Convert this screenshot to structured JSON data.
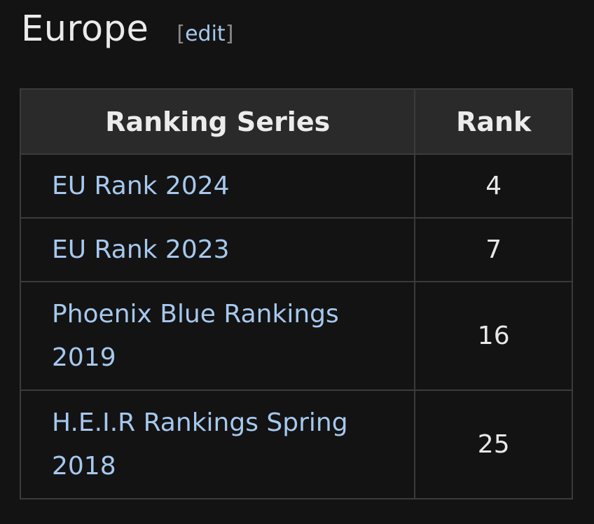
{
  "section": {
    "title": "Europe",
    "edit_open": "[",
    "edit_label": "edit",
    "edit_close": "]"
  },
  "table": {
    "headers": {
      "series": "Ranking Series",
      "rank": "Rank"
    },
    "rows": [
      {
        "series": "EU Rank 2024",
        "rank": "4"
      },
      {
        "series": "EU Rank 2023",
        "rank": "7"
      },
      {
        "series": "Phoenix Blue Rankings 2019",
        "rank": "16"
      },
      {
        "series": "H.E.I.R Rankings Spring 2018",
        "rank": "25"
      }
    ]
  },
  "colors": {
    "background": "#131313",
    "link": "#a6c8ee",
    "header_bg": "#2a2a2a",
    "border": "#3b3b3b"
  }
}
